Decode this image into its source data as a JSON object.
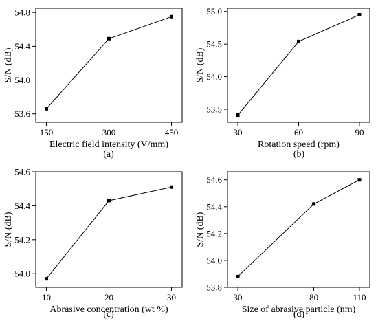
{
  "chart_data": [
    {
      "type": "line",
      "panel_label": "(a)",
      "xlabel": "Electric field intensity (V/mm)",
      "ylabel": "S/N (dB)",
      "x": [
        150,
        300,
        450
      ],
      "x_ticks": [
        "150",
        "300",
        "450"
      ],
      "y": [
        53.66,
        54.49,
        54.75
      ],
      "ylim": [
        53.5,
        54.85
      ],
      "y_ticks": [
        53.6,
        54.0,
        54.4,
        54.8
      ],
      "y_tick_labels": [
        "53.6",
        "54.0",
        "54.4",
        "54.8"
      ]
    },
    {
      "type": "line",
      "panel_label": "(b)",
      "xlabel": "Rotation speed (rpm)",
      "ylabel": "S/N (dB)",
      "x": [
        30,
        60,
        90
      ],
      "x_ticks": [
        "30",
        "60",
        "90"
      ],
      "y": [
        53.41,
        54.54,
        54.95
      ],
      "ylim": [
        53.3,
        55.05
      ],
      "y_ticks": [
        53.5,
        54.0,
        54.5,
        55.0
      ],
      "y_tick_labels": [
        "53.5",
        "54.0",
        "54.5",
        "55.0"
      ]
    },
    {
      "type": "line",
      "panel_label": "(c)",
      "xlabel": "Abrasive concentration (wt %)",
      "ylabel": "S/N (dB)",
      "x": [
        10,
        20,
        30
      ],
      "x_ticks": [
        "10",
        "20",
        "30"
      ],
      "y": [
        53.97,
        54.43,
        54.51
      ],
      "ylim": [
        53.92,
        54.6
      ],
      "y_ticks": [
        54.0,
        54.2,
        54.4,
        54.6
      ],
      "y_tick_labels": [
        "54.0",
        "54.2",
        "54.4",
        "54.6"
      ]
    },
    {
      "type": "line",
      "panel_label": "(d)",
      "xlabel": "Size of abrasive particle (nm)",
      "ylabel": "S/N (dB)",
      "x": [
        30,
        80,
        110
      ],
      "x_ticks": [
        "30",
        "80",
        "110"
      ],
      "y": [
        53.88,
        54.42,
        54.6
      ],
      "ylim": [
        53.8,
        54.66
      ],
      "y_ticks": [
        53.8,
        54.0,
        54.2,
        54.4,
        54.6
      ],
      "y_tick_labels": [
        "53.8",
        "54.0",
        "54.2",
        "54.4",
        "54.6"
      ]
    }
  ]
}
